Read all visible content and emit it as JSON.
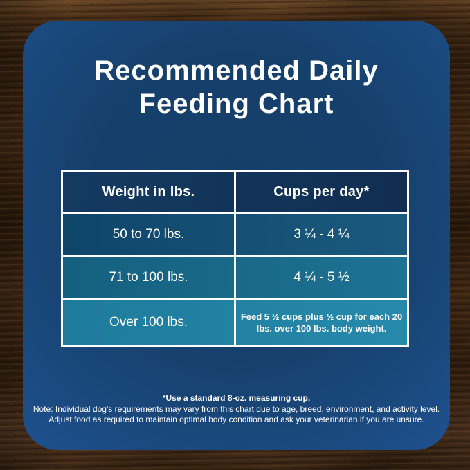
{
  "title": {
    "line1": "Recommended Daily",
    "line2": "Feeding Chart"
  },
  "table": {
    "headers": [
      "Weight in lbs.",
      "Cups per day*"
    ],
    "rows": [
      {
        "weight": "50 to 70 lbs.",
        "cups": "3 ¼ - 4 ¼"
      },
      {
        "weight": "71 to 100 lbs.",
        "cups": "4 ¼ - 5 ½"
      },
      {
        "weight": "Over 100 lbs.",
        "cups": "Feed 5 ½ cups plus ½ cup for each 20 lbs. over 100 lbs. body weight."
      }
    ]
  },
  "footnotes": [
    "*Use a standard 8-oz. measuring cup.",
    "Note: Individual dog's requirements may vary from this chart due to age, breed, environment, and activity level.",
    "Adjust food as required to maintain optimal body condition and ask your veterinarian if you are unsure."
  ],
  "colors": {
    "card_blue": "#17426f",
    "card_edge_blue": "#1e5190",
    "header_row_bg": "#123459",
    "row1_bg": "#0f486f",
    "row2_bg": "#176284",
    "row3_bg": "#1f7b9d",
    "table_border": "#ffffff",
    "text": "#ffffff",
    "wood_brown": "#3a2513"
  },
  "chart_data": {
    "type": "table",
    "title": "Recommended Daily Feeding Chart",
    "columns": [
      "Weight in lbs.",
      "Cups per day*"
    ],
    "rows": [
      [
        "50 to 70 lbs.",
        "3 ¼ - 4 ¼"
      ],
      [
        "71 to 100 lbs.",
        "4 ¼ - 5 ½"
      ],
      [
        "Over 100 lbs.",
        "Feed 5 ½ cups plus ½ cup for each 20 lbs. over 100 lbs. body weight."
      ]
    ],
    "notes": [
      "*Use a standard 8-oz. measuring cup.",
      "Note: Individual dog's requirements may vary from this chart due to age, breed, environment, and activity level.",
      "Adjust food as required to maintain optimal body condition and ask your veterinarian if you are unsure."
    ]
  }
}
